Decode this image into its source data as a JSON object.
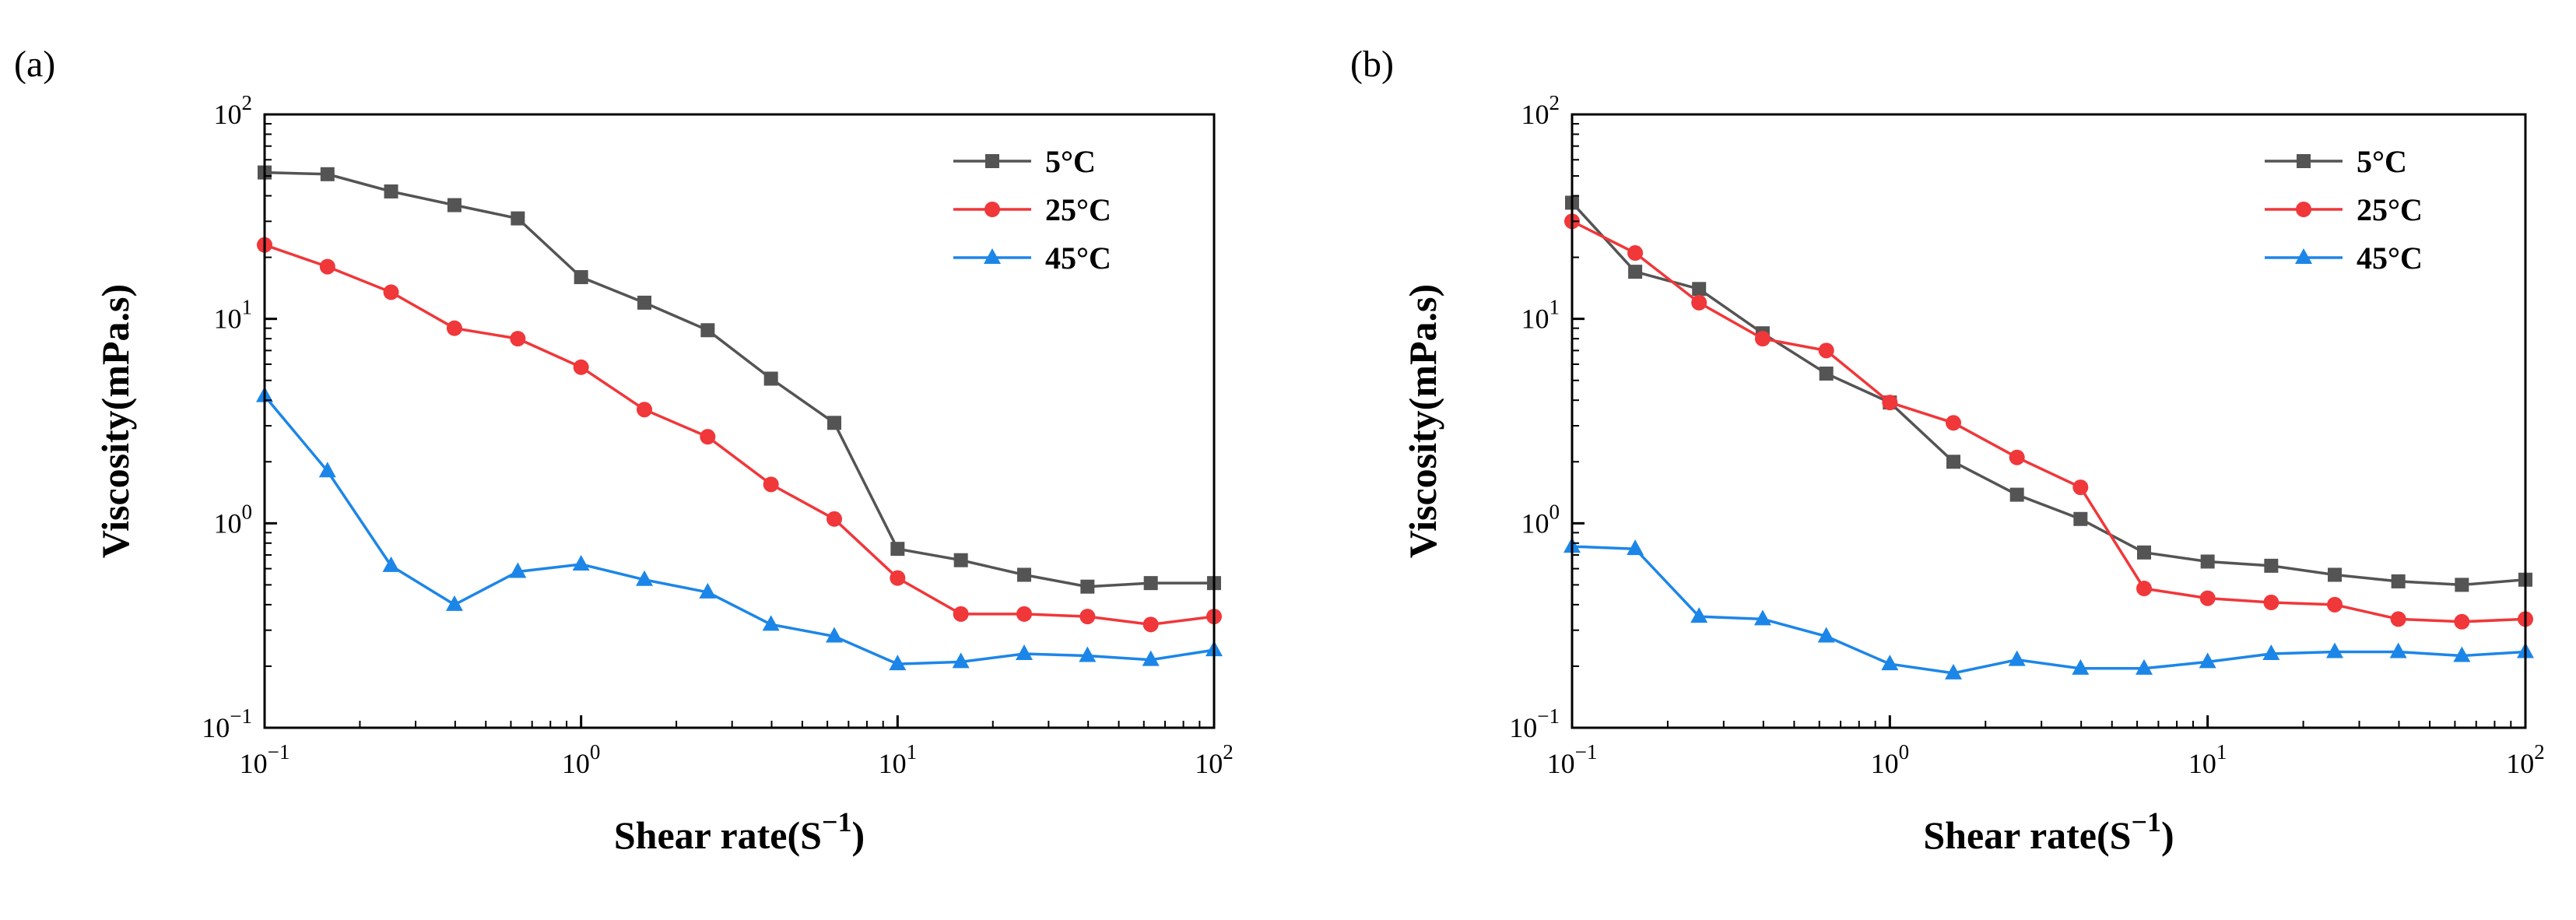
{
  "chart_data": [
    {
      "panel_label": "(a)",
      "type": "line",
      "xlabel": "Shear rate(S",
      "xlabel_sup": "−1",
      "xlabel_end": ")",
      "ylabel": "Viscosity(mPa.s)",
      "xscale": "log",
      "yscale": "log",
      "xlim": [
        0.1,
        100
      ],
      "ylim": [
        0.1,
        100
      ],
      "grid": false,
      "legend_position": "top-right",
      "x_ticks": [
        {
          "base": "10",
          "exp": "−1"
        },
        {
          "base": "10",
          "exp": "0"
        },
        {
          "base": "10",
          "exp": "1"
        },
        {
          "base": "10",
          "exp": "2"
        }
      ],
      "y_ticks": [
        {
          "base": "10",
          "exp": "−1"
        },
        {
          "base": "10",
          "exp": "0"
        },
        {
          "base": "10",
          "exp": "1"
        },
        {
          "base": "10",
          "exp": "2"
        }
      ],
      "x": [
        0.1,
        0.158,
        0.251,
        0.398,
        0.631,
        1,
        1.585,
        2.512,
        3.981,
        6.31,
        10,
        15.85,
        25.12,
        39.81,
        63.1,
        100
      ],
      "series": [
        {
          "name": "5°C",
          "color": "#545454",
          "marker": "square",
          "values": [
            52,
            51,
            42,
            36,
            31,
            16,
            12,
            8.8,
            5.1,
            3.1,
            0.75,
            0.66,
            0.56,
            0.49,
            0.51,
            0.51
          ]
        },
        {
          "name": "25°C",
          "color": "#f0373a",
          "marker": "circle",
          "values": [
            23,
            18,
            13.5,
            9,
            8,
            5.8,
            3.6,
            2.65,
            1.55,
            1.05,
            0.54,
            0.36,
            0.36,
            0.35,
            0.32,
            0.35
          ]
        },
        {
          "name": "45°C",
          "color": "#1c86e8",
          "marker": "triangle",
          "values": [
            4.2,
            1.8,
            0.62,
            0.4,
            0.58,
            0.63,
            0.53,
            0.46,
            0.32,
            0.28,
            0.205,
            0.21,
            0.23,
            0.225,
            0.215,
            0.24
          ]
        }
      ]
    },
    {
      "panel_label": "(b)",
      "type": "line",
      "xlabel": "Shear rate(S",
      "xlabel_sup": "−1",
      "xlabel_end": ")",
      "ylabel": "Viscosity(mPa.s)",
      "xscale": "log",
      "yscale": "log",
      "xlim": [
        0.1,
        100
      ],
      "ylim": [
        0.1,
        100
      ],
      "grid": false,
      "legend_position": "top-right",
      "x_ticks": [
        {
          "base": "10",
          "exp": "−1"
        },
        {
          "base": "10",
          "exp": "0"
        },
        {
          "base": "10",
          "exp": "1"
        },
        {
          "base": "10",
          "exp": "2"
        }
      ],
      "y_ticks": [
        {
          "base": "10",
          "exp": "−1"
        },
        {
          "base": "10",
          "exp": "0"
        },
        {
          "base": "10",
          "exp": "1"
        },
        {
          "base": "10",
          "exp": "2"
        }
      ],
      "x": [
        0.1,
        0.158,
        0.251,
        0.398,
        0.631,
        1,
        1.585,
        2.512,
        3.981,
        6.31,
        10,
        15.85,
        25.12,
        39.81,
        63.1,
        100
      ],
      "series": [
        {
          "name": "5°C",
          "color": "#545454",
          "marker": "square",
          "values": [
            37,
            17,
            14,
            8.5,
            5.4,
            3.9,
            2,
            1.38,
            1.05,
            0.72,
            0.65,
            0.62,
            0.56,
            0.52,
            0.5,
            0.53
          ]
        },
        {
          "name": "25°C",
          "color": "#f0373a",
          "marker": "circle",
          "values": [
            30,
            21,
            12,
            8,
            7,
            3.9,
            3.1,
            2.1,
            1.5,
            0.48,
            0.43,
            0.41,
            0.4,
            0.34,
            0.33,
            0.34
          ]
        },
        {
          "name": "45°C",
          "color": "#1c86e8",
          "marker": "triangle",
          "values": [
            0.77,
            0.75,
            0.35,
            0.34,
            0.28,
            0.205,
            0.185,
            0.215,
            0.195,
            0.195,
            0.21,
            0.23,
            0.235,
            0.235,
            0.225,
            0.235
          ]
        }
      ]
    }
  ]
}
